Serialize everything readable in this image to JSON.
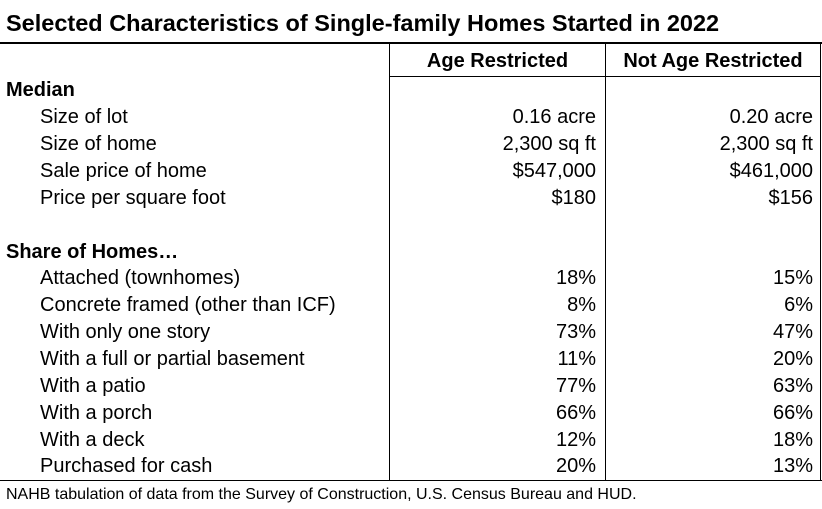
{
  "title": "Selected Characteristics of Single-family Homes Started in 2022",
  "columns": [
    "Age Restricted",
    "Not Age Restricted"
  ],
  "sections": [
    {
      "heading": "Median",
      "rows": [
        {
          "label": "Size of lot",
          "age_restricted": "0.16 acre",
          "not_age_restricted": "0.20 acre"
        },
        {
          "label": "Size of home",
          "age_restricted": "2,300 sq ft",
          "not_age_restricted": "2,300 sq ft"
        },
        {
          "label": "Sale price of home",
          "age_restricted": "$547,000",
          "not_age_restricted": "$461,000"
        },
        {
          "label": "Price per square foot",
          "age_restricted": "$180",
          "not_age_restricted": "$156"
        }
      ]
    },
    {
      "heading": "Share of Homes…",
      "rows": [
        {
          "label": "Attached (townhomes)",
          "age_restricted": "18%",
          "not_age_restricted": "15%"
        },
        {
          "label": "Concrete framed (other than ICF)",
          "age_restricted": "8%",
          "not_age_restricted": "6%"
        },
        {
          "label": "With only one story",
          "age_restricted": "73%",
          "not_age_restricted": "47%"
        },
        {
          "label": "With a full or partial basement",
          "age_restricted": "11%",
          "not_age_restricted": "20%"
        },
        {
          "label": "With a patio",
          "age_restricted": "77%",
          "not_age_restricted": "63%"
        },
        {
          "label": "With a porch",
          "age_restricted": "66%",
          "not_age_restricted": "66%"
        },
        {
          "label": "With a deck",
          "age_restricted": "12%",
          "not_age_restricted": "18%"
        },
        {
          "label": "Purchased for cash",
          "age_restricted": "20%",
          "not_age_restricted": "13%"
        }
      ]
    }
  ],
  "source": "NAHB tabulation of data from the Survey of Construction, U.S. Census Bureau and HUD."
}
